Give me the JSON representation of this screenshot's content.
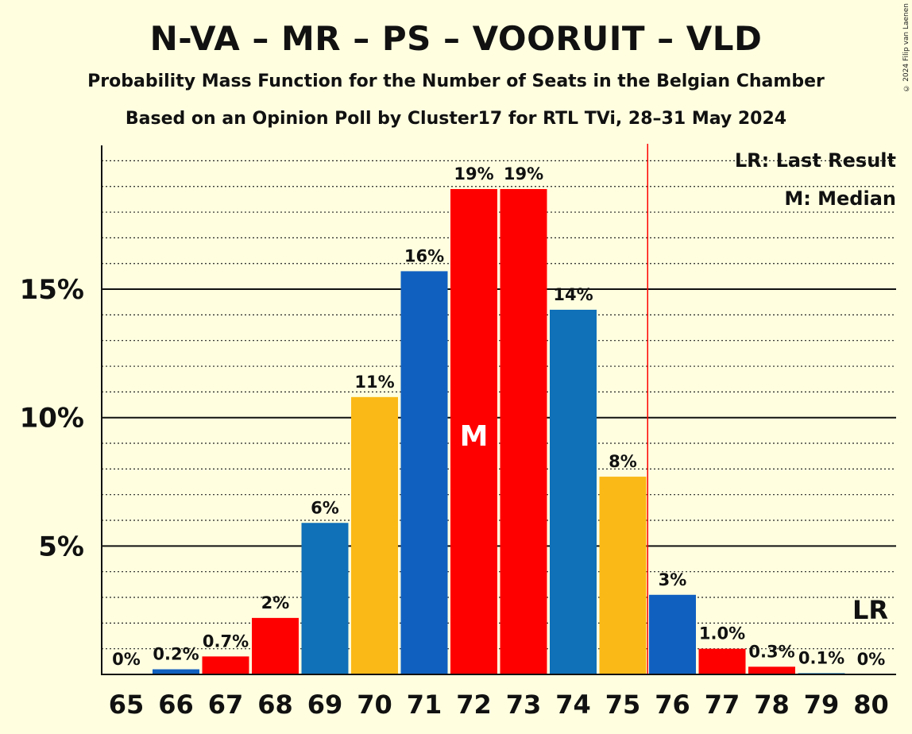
{
  "chart_data": {
    "type": "bar",
    "title": "N-VA – MR – PS – VOORUIT – VLD",
    "subtitle": "Probability Mass Function for the Number of Seats in the Belgian Chamber",
    "subtitle2": "Based on an Opinion Poll by Cluster17 for RTL TVi, 28–31 May 2024",
    "copyright": "© 2024 Filip van Laenen",
    "categories": [
      "65",
      "66",
      "67",
      "68",
      "69",
      "70",
      "71",
      "72",
      "73",
      "74",
      "75",
      "76",
      "77",
      "78",
      "79",
      "80"
    ],
    "values": [
      0,
      0.2,
      0.7,
      2.2,
      5.9,
      10.8,
      15.7,
      18.9,
      18.9,
      14.2,
      7.7,
      3.1,
      1.0,
      0.3,
      0.05,
      0
    ],
    "labels": [
      "0%",
      "0.2%",
      "0.7%",
      "2%",
      "6%",
      "11%",
      "16%",
      "19%",
      "19%",
      "14%",
      "8%",
      "3%",
      "1.0%",
      "0.3%",
      "0.1%",
      "0%"
    ],
    "colors": [
      "#FFCC00",
      "#1060C0",
      "#FF0000",
      "#FF0000",
      "#1070B8",
      "#FBB917",
      "#1060C0",
      "#FF0000",
      "#FF0000",
      "#1070B8",
      "#FBB917",
      "#1060C0",
      "#FF0000",
      "#FF0000",
      "#1070B8",
      "#FBB917"
    ],
    "ylim": [
      0,
      20.6
    ],
    "yticks": [
      5,
      10,
      15
    ],
    "ytick_labels": [
      "5%",
      "10%",
      "15%"
    ],
    "minor_step": 1,
    "median_index": 7,
    "median_label": "M",
    "last_result_seat": 75.5,
    "last_result_label": "LR",
    "legend": [
      "LR: Last Result",
      "M: Median"
    ],
    "legend_position": "top-right",
    "background": "#FFFFE0",
    "lr_line_color": "#FF0000"
  }
}
